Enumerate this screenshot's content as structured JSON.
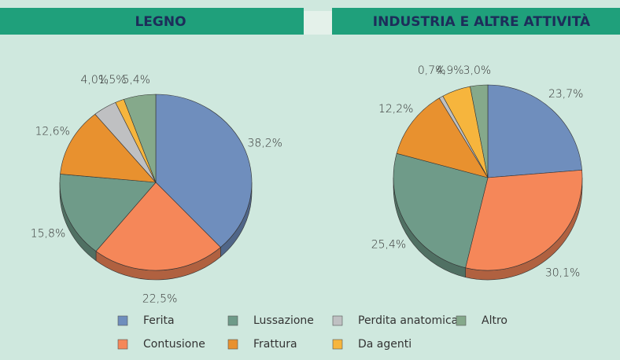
{
  "chart_data": [
    {
      "type": "pie",
      "title": "LEGNO",
      "categories": [
        "Ferita",
        "Contusione",
        "Lussazione",
        "Frattura",
        "Perdita anatomica",
        "Da agenti",
        "Altro"
      ],
      "values": [
        38.2,
        22.5,
        15.8,
        12.6,
        4.0,
        1.5,
        5.4
      ],
      "value_labels": [
        "38,2%",
        "22,5%",
        "15,8%",
        "12,6%",
        "4,0%",
        "1,5%",
        "5,4%"
      ],
      "colors": [
        "#6f8ebd",
        "#f58759",
        "#6f9b89",
        "#e8912f",
        "#bfc0c2",
        "#f6b53d",
        "#85a98b"
      ]
    },
    {
      "type": "pie",
      "title": "INDUSTRIA E ALTRE ATTIVITÀ",
      "categories": [
        "Ferita",
        "Contusione",
        "Lussazione",
        "Frattura",
        "Perdita anatomica",
        "Da agenti",
        "Altro"
      ],
      "values": [
        23.7,
        30.1,
        25.4,
        12.2,
        0.7,
        4.9,
        3.0
      ],
      "value_labels": [
        "23,7%",
        "30,1%",
        "25,4%",
        "12,2%",
        "0,7%",
        "4,9%",
        "3,0%"
      ],
      "colors": [
        "#6f8ebd",
        "#f58759",
        "#6f9b89",
        "#e8912f",
        "#bfc0c2",
        "#f6b53d",
        "#85a98b"
      ]
    }
  ]
}
